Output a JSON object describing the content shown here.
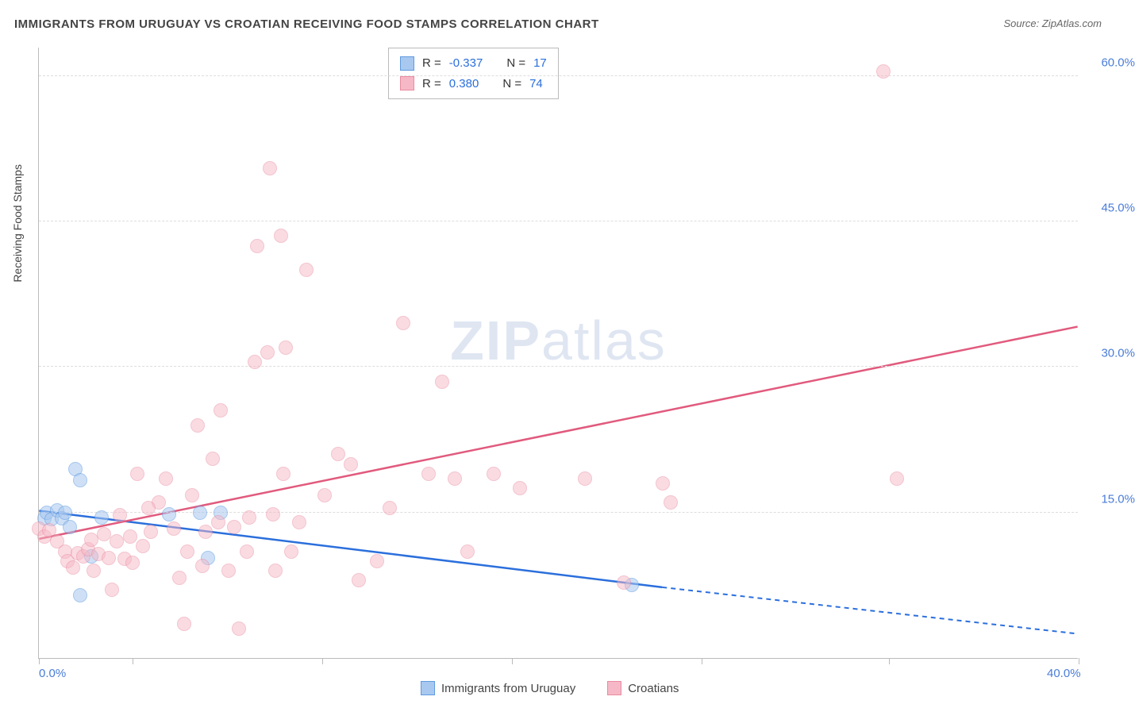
{
  "title": "IMMIGRANTS FROM URUGUAY VS CROATIAN RECEIVING FOOD STAMPS CORRELATION CHART",
  "source": "Source: ZipAtlas.com",
  "watermark_a": "ZIP",
  "watermark_b": "atlas",
  "ylabel": "Receiving Food Stamps",
  "chart": {
    "type": "scatter",
    "xlim": [
      0,
      40
    ],
    "ylim": [
      0,
      63
    ],
    "xtick_labels": [
      {
        "v": 0,
        "label": "0.0%"
      },
      {
        "v": 40,
        "label": "40.0%"
      }
    ],
    "xtick_positions": [
      0,
      3.6,
      10.9,
      18.2,
      25.5,
      32.7,
      40
    ],
    "ytick_labels": [
      {
        "v": 15,
        "label": "15.0%"
      },
      {
        "v": 30,
        "label": "30.0%"
      },
      {
        "v": 45,
        "label": "45.0%"
      },
      {
        "v": 60,
        "label": "60.0%"
      }
    ],
    "grid_y": [
      15,
      30,
      45,
      60
    ],
    "grid_color": "#dddddd",
    "background_color": "#ffffff",
    "marker_radius": 9,
    "series": [
      {
        "name": "Immigrants from Uruguay",
        "fill": "#a9c8f0",
        "stroke": "#5f9be0",
        "fill_opacity": 0.55,
        "line_color": "#2b6fdc",
        "r_value": "-0.337",
        "n_value": "17",
        "trend": {
          "x1": 0,
          "y1": 15.2,
          "x2": 24,
          "y2": 7.3,
          "x3": 40,
          "y3": 2.5
        },
        "points": [
          [
            0.2,
            14.4
          ],
          [
            0.3,
            15.0
          ],
          [
            0.5,
            14.3
          ],
          [
            0.7,
            15.2
          ],
          [
            0.9,
            14.4
          ],
          [
            1.0,
            15.0
          ],
          [
            1.2,
            13.5
          ],
          [
            1.4,
            19.5
          ],
          [
            1.6,
            18.3
          ],
          [
            1.6,
            6.5
          ],
          [
            2.0,
            10.5
          ],
          [
            2.4,
            14.5
          ],
          [
            5.0,
            14.8
          ],
          [
            6.2,
            15.0
          ],
          [
            6.5,
            10.3
          ],
          [
            7.0,
            15.0
          ],
          [
            22.8,
            7.5
          ]
        ]
      },
      {
        "name": "Croatians",
        "fill": "#f6b8c6",
        "stroke": "#e98ba0",
        "fill_opacity": 0.5,
        "line_color": "#e15a7d",
        "r_value": "0.380",
        "n_value": "74",
        "trend": {
          "x1": 0,
          "y1": 12.3,
          "x2": 40,
          "y2": 34.2
        },
        "points": [
          [
            0.0,
            13.3
          ],
          [
            0.2,
            12.5
          ],
          [
            0.4,
            13.2
          ],
          [
            0.7,
            12.0
          ],
          [
            1.0,
            11.0
          ],
          [
            1.1,
            10.0
          ],
          [
            1.3,
            9.3
          ],
          [
            1.5,
            10.8
          ],
          [
            1.7,
            10.5
          ],
          [
            1.9,
            11.2
          ],
          [
            2.0,
            12.2
          ],
          [
            2.1,
            9.0
          ],
          [
            2.3,
            10.7
          ],
          [
            2.5,
            12.8
          ],
          [
            2.7,
            10.3
          ],
          [
            2.8,
            7.0
          ],
          [
            3.0,
            12.0
          ],
          [
            3.1,
            14.7
          ],
          [
            3.3,
            10.2
          ],
          [
            3.5,
            12.5
          ],
          [
            3.6,
            9.8
          ],
          [
            3.8,
            19.0
          ],
          [
            4.0,
            11.5
          ],
          [
            4.3,
            13.0
          ],
          [
            4.6,
            16.0
          ],
          [
            4.9,
            18.5
          ],
          [
            5.2,
            13.3
          ],
          [
            5.4,
            8.3
          ],
          [
            5.6,
            3.5
          ],
          [
            5.7,
            11.0
          ],
          [
            5.9,
            16.8
          ],
          [
            6.1,
            24.0
          ],
          [
            6.3,
            9.5
          ],
          [
            6.4,
            13.0
          ],
          [
            6.7,
            20.5
          ],
          [
            6.9,
            14.0
          ],
          [
            7.0,
            25.5
          ],
          [
            7.3,
            9.0
          ],
          [
            7.5,
            13.5
          ],
          [
            7.7,
            3.0
          ],
          [
            8.0,
            11.0
          ],
          [
            8.1,
            14.5
          ],
          [
            8.3,
            30.5
          ],
          [
            8.4,
            42.5
          ],
          [
            8.8,
            31.5
          ],
          [
            8.9,
            50.5
          ],
          [
            9.0,
            14.8
          ],
          [
            9.1,
            9.0
          ],
          [
            9.3,
            43.5
          ],
          [
            9.5,
            32.0
          ],
          [
            9.7,
            11.0
          ],
          [
            10.0,
            14.0
          ],
          [
            10.3,
            40.0
          ],
          [
            11.0,
            16.8
          ],
          [
            11.5,
            21.0
          ],
          [
            12.0,
            20.0
          ],
          [
            12.3,
            8.0
          ],
          [
            13.0,
            10.0
          ],
          [
            13.5,
            15.5
          ],
          [
            14.0,
            34.5
          ],
          [
            15.0,
            19.0
          ],
          [
            15.5,
            28.5
          ],
          [
            16.0,
            18.5
          ],
          [
            16.5,
            11.0
          ],
          [
            17.5,
            19.0
          ],
          [
            18.5,
            17.5
          ],
          [
            21.0,
            18.5
          ],
          [
            22.5,
            7.8
          ],
          [
            24.0,
            18.0
          ],
          [
            24.3,
            16.0
          ],
          [
            32.5,
            60.5
          ],
          [
            33.0,
            18.5
          ],
          [
            9.4,
            19.0
          ],
          [
            4.2,
            15.5
          ]
        ]
      }
    ]
  },
  "legend_labels": {
    "r_prefix": "R =",
    "n_prefix": "N ="
  }
}
